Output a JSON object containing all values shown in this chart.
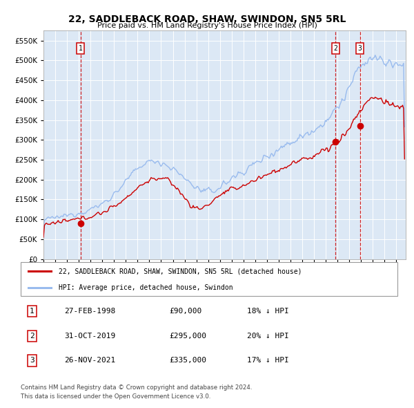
{
  "title": "22, SADDLEBACK ROAD, SHAW, SWINDON, SN5 5RL",
  "subtitle": "Price paid vs. HM Land Registry's House Price Index (HPI)",
  "legend_property": "22, SADDLEBACK ROAD, SHAW, SWINDON, SN5 5RL (detached house)",
  "legend_hpi": "HPI: Average price, detached house, Swindon",
  "footnote1": "Contains HM Land Registry data © Crown copyright and database right 2024.",
  "footnote2": "This data is licensed under the Open Government Licence v3.0.",
  "transactions": [
    {
      "num": 1,
      "date": "27-FEB-1998",
      "price": 90000,
      "pct": "18%",
      "x_year": 1998.15
    },
    {
      "num": 2,
      "date": "31-OCT-2019",
      "price": 295000,
      "pct": "20%",
      "x_year": 2019.83
    },
    {
      "num": 3,
      "date": "26-NOV-2021",
      "price": 335000,
      "pct": "17%",
      "x_year": 2021.9
    }
  ],
  "property_color": "#cc0000",
  "hpi_color": "#99bbee",
  "bg_color": "#dce8f5",
  "ylim": [
    0,
    575000
  ],
  "xlim_start": 1995.0,
  "xlim_end": 2025.8,
  "yticks": [
    0,
    50000,
    100000,
    150000,
    200000,
    250000,
    300000,
    350000,
    400000,
    450000,
    500000,
    550000
  ],
  "xticks": [
    1995,
    1996,
    1997,
    1998,
    1999,
    2000,
    2001,
    2002,
    2003,
    2004,
    2005,
    2006,
    2007,
    2008,
    2009,
    2010,
    2011,
    2012,
    2013,
    2014,
    2015,
    2016,
    2017,
    2018,
    2019,
    2020,
    2021,
    2022,
    2023,
    2024,
    2025
  ]
}
